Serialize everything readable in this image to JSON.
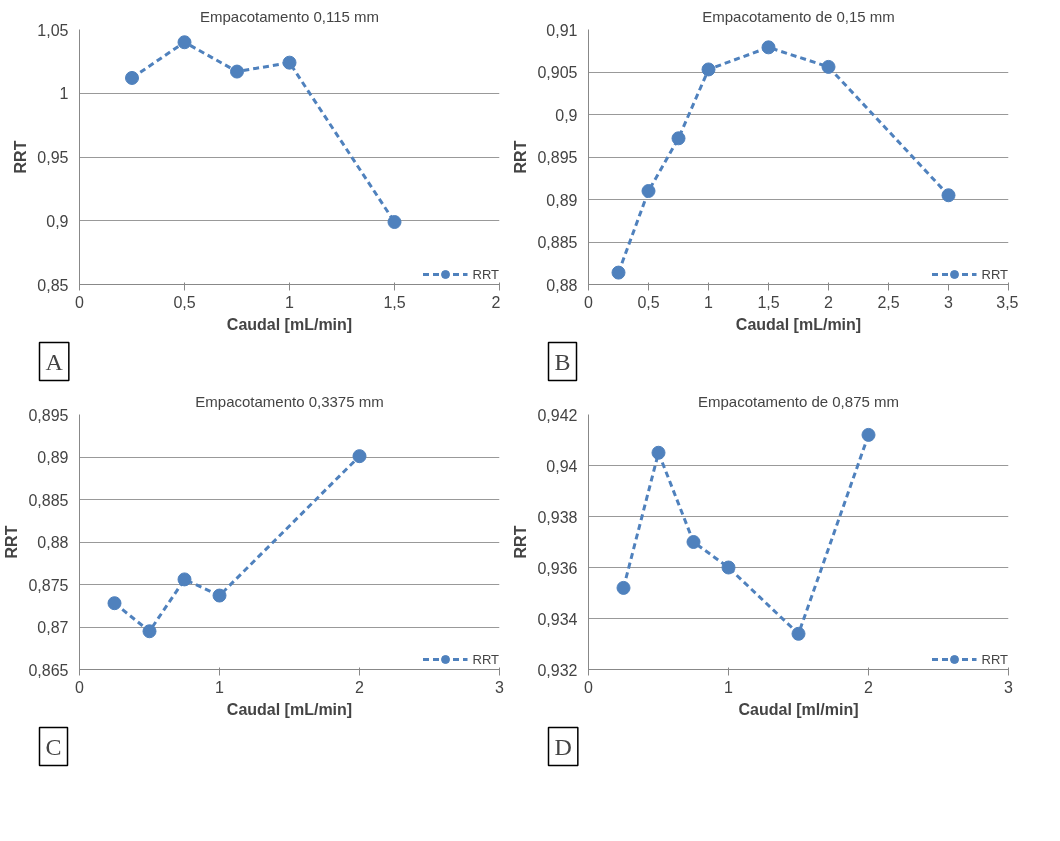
{
  "chart_data": [
    {
      "type": "line",
      "title": "Empacotamento 0,115 mm",
      "xlabel": "Caudal [mL/min]",
      "ylabel": "RRT",
      "annotations": [
        "A"
      ],
      "x": [
        0.25,
        0.5,
        0.75,
        1,
        1.5
      ],
      "series": [
        {
          "name": "RRT",
          "color": "#4f81bd",
          "values": [
            1.012,
            1.04,
            1.017,
            1.024,
            0.899
          ]
        }
      ],
      "xlim": [
        0,
        2
      ],
      "xticks": [
        0,
        {
          "value": 0.5,
          "label": "0,5"
        },
        1,
        {
          "value": 1.5,
          "label": "1,5"
        },
        2
      ],
      "ylim": [
        0.85,
        1.05
      ],
      "yticks": [
        {
          "value": 0.85,
          "label": "0,85"
        },
        {
          "value": 0.9,
          "label": "0,9"
        },
        {
          "value": 0.95,
          "label": "0,95"
        },
        1,
        {
          "value": 1.05,
          "label": "1,05"
        }
      ],
      "grid": "y",
      "legend": "bottom right",
      "marker": "circle",
      "line_style": "dashed"
    },
    {
      "type": "line",
      "title": "Empacotamento de 0,15 mm",
      "xlabel": "Caudal [mL/min]",
      "ylabel": "RRT",
      "annotations": [
        "B"
      ],
      "x": [
        0.25,
        0.5,
        0.75,
        1,
        1.5,
        2,
        3
      ],
      "series": [
        {
          "name": "RRT",
          "color": "#4f81bd",
          "values": [
            0.8814,
            0.891,
            0.8972,
            0.9053,
            0.9079,
            0.9056,
            0.8905
          ]
        }
      ],
      "xlim": [
        0,
        3.5
      ],
      "xticks": [
        0,
        {
          "value": 0.5,
          "label": "0,5"
        },
        1,
        {
          "value": 1.5,
          "label": "1,5"
        },
        2,
        {
          "value": 2.5,
          "label": "2,5"
        },
        3,
        {
          "value": 3.5,
          "label": "3,5"
        }
      ],
      "ylim": [
        0.88,
        0.91
      ],
      "yticks": [
        {
          "value": 0.88,
          "label": "0,88"
        },
        {
          "value": 0.885,
          "label": "0,885"
        },
        {
          "value": 0.89,
          "label": "0,89"
        },
        {
          "value": 0.895,
          "label": "0,895"
        },
        {
          "value": 0.9,
          "label": "0,9"
        },
        {
          "value": 0.905,
          "label": "0,905"
        },
        {
          "value": 0.91,
          "label": "0,91"
        }
      ],
      "grid": "y",
      "legend": "bottom right",
      "marker": "circle",
      "line_style": "dashed"
    },
    {
      "type": "line",
      "title": "Empacotamento 0,3375 mm",
      "xlabel": "Caudal [mL/min]",
      "ylabel": "RRT",
      "annotations": [
        "C"
      ],
      "x": [
        0.25,
        0.5,
        0.75,
        1,
        2
      ],
      "series": [
        {
          "name": "RRT",
          "color": "#4f81bd",
          "values": [
            0.8728,
            0.8695,
            0.8756,
            0.8737,
            0.8901
          ]
        }
      ],
      "xlim": [
        0,
        3
      ],
      "xticks": [
        0,
        1,
        2,
        3
      ],
      "ylim": [
        0.865,
        0.895
      ],
      "yticks": [
        {
          "value": 0.865,
          "label": "0,865"
        },
        {
          "value": 0.87,
          "label": "0,87"
        },
        {
          "value": 0.875,
          "label": "0,875"
        },
        {
          "value": 0.88,
          "label": "0,88"
        },
        {
          "value": 0.885,
          "label": "0,885"
        },
        {
          "value": 0.89,
          "label": "0,89"
        },
        {
          "value": 0.895,
          "label": "0,895"
        }
      ],
      "grid": "y",
      "legend": "bottom right",
      "marker": "circle",
      "line_style": "dashed"
    },
    {
      "type": "line",
      "title": "Empacotamento de 0,875 mm",
      "xlabel": "Caudal [ml/min]",
      "ylabel": "RRT",
      "annotations": [
        "D"
      ],
      "x": [
        0.25,
        0.5,
        0.75,
        1,
        1.5,
        2
      ],
      "series": [
        {
          "name": "RRT",
          "color": "#4f81bd",
          "values": [
            0.9352,
            0.9405,
            0.937,
            0.936,
            0.9334,
            0.9412
          ]
        }
      ],
      "xlim": [
        0,
        3
      ],
      "xticks": [
        0,
        1,
        2,
        3
      ],
      "ylim": [
        0.932,
        0.942
      ],
      "yticks": [
        {
          "value": 0.932,
          "label": "0,932"
        },
        {
          "value": 0.934,
          "label": "0,934"
        },
        {
          "value": 0.936,
          "label": "0,936"
        },
        {
          "value": 0.938,
          "label": "0,938"
        },
        {
          "value": 0.94,
          "label": "0,94"
        },
        {
          "value": 0.942,
          "label": "0,942"
        }
      ],
      "grid": "y",
      "legend": "bottom right",
      "marker": "circle",
      "line_style": "dashed"
    }
  ]
}
